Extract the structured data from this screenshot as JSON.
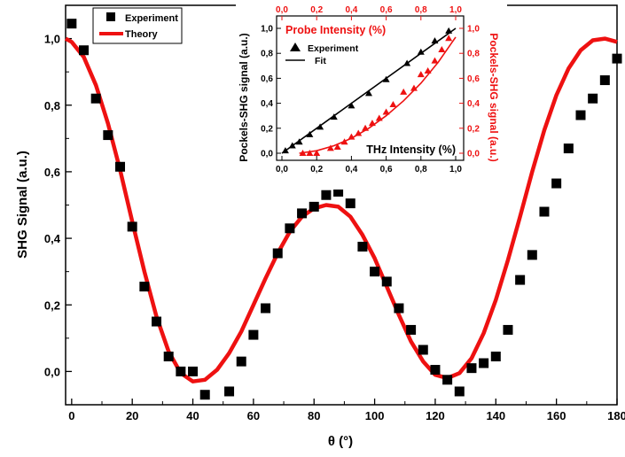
{
  "chart_data": [
    {
      "type": "scatter",
      "xlabel": "θ (°)",
      "ylabel": "SHG Signal (a.u.)",
      "xlim": [
        -2,
        180
      ],
      "ylim": [
        -0.1,
        1.1
      ],
      "x_ticks": [
        "0",
        "20",
        "40",
        "60",
        "80",
        "100",
        "120",
        "140",
        "160",
        "180"
      ],
      "y_ticks": [
        "0,0",
        "0,2",
        "0,4",
        "0,6",
        "0,8",
        "1,0"
      ],
      "legend": {
        "position": "top-left",
        "entries": [
          "Experiment",
          "Theory"
        ]
      },
      "series": [
        {
          "name": "Experiment",
          "style": "square-markers",
          "color": "#000000",
          "x": [
            0,
            4,
            8,
            12,
            16,
            20,
            24,
            28,
            32,
            36,
            40,
            44,
            52,
            56,
            60,
            64,
            68,
            72,
            76,
            80,
            84,
            88,
            92,
            96,
            100,
            104,
            108,
            112,
            116,
            120,
            124,
            128,
            132,
            136,
            140,
            144,
            148,
            152,
            156,
            160,
            164,
            168,
            172,
            176,
            180
          ],
          "y": [
            1.045,
            0.965,
            0.82,
            0.71,
            0.615,
            0.435,
            0.255,
            0.15,
            0.045,
            0.0,
            0.0,
            -0.07,
            -0.06,
            0.03,
            0.11,
            0.19,
            0.355,
            0.43,
            0.475,
            0.495,
            0.53,
            0.54,
            0.505,
            0.375,
            0.3,
            0.27,
            0.19,
            0.125,
            0.065,
            0.005,
            -0.025,
            -0.06,
            0.01,
            0.025,
            0.045,
            0.125,
            0.275,
            0.35,
            0.48,
            0.565,
            0.67,
            0.77,
            0.82,
            0.875,
            0.94
          ]
        },
        {
          "name": "Theory",
          "style": "line",
          "color": "#ee1111",
          "x": [
            -2,
            0,
            4,
            8,
            12,
            16,
            20,
            24,
            28,
            32,
            36,
            40,
            44,
            48,
            52,
            56,
            60,
            64,
            68,
            72,
            76,
            80,
            84,
            88,
            92,
            96,
            100,
            104,
            108,
            112,
            116,
            120,
            124,
            128,
            132,
            136,
            140,
            144,
            148,
            152,
            156,
            160,
            164,
            168,
            172,
            176,
            180
          ],
          "y": [
            1.0,
            0.99,
            0.945,
            0.86,
            0.745,
            0.605,
            0.45,
            0.3,
            0.165,
            0.06,
            -0.005,
            -0.03,
            -0.025,
            0.005,
            0.055,
            0.12,
            0.2,
            0.28,
            0.355,
            0.42,
            0.465,
            0.49,
            0.5,
            0.495,
            0.465,
            0.41,
            0.34,
            0.255,
            0.17,
            0.09,
            0.03,
            -0.01,
            -0.02,
            -0.005,
            0.04,
            0.115,
            0.215,
            0.335,
            0.465,
            0.6,
            0.725,
            0.83,
            0.91,
            0.965,
            0.995,
            1.0,
            0.99
          ]
        }
      ]
    },
    {
      "type": "scatter",
      "inset": true,
      "xlabel": "THz Intensity (%)",
      "x2label": "Probe Intensity (%)",
      "ylabel": "Pockels-SHG signal (a.u.)",
      "y2label": "Pockels-SHG signal (a.u.)",
      "xlim": [
        0,
        1
      ],
      "ylim": [
        0,
        1
      ],
      "x_ticks": [
        "0,0",
        "0,2",
        "0,4",
        "0,6",
        "0,8",
        "1,0"
      ],
      "y_ticks": [
        "0,0",
        "0,2",
        "0,4",
        "0,6",
        "0,8",
        "1,0"
      ],
      "legend": {
        "position": "top-left",
        "entries": [
          "Experiment",
          "Fit"
        ]
      },
      "series": [
        {
          "name": "Experiment",
          "style": "triangle-markers",
          "color": "#000000",
          "axis": "THz Intensity",
          "x": [
            0.02,
            0.06,
            0.1,
            0.16,
            0.22,
            0.3,
            0.4,
            0.5,
            0.6,
            0.72,
            0.8,
            0.88,
            0.96
          ],
          "y": [
            0.02,
            0.06,
            0.09,
            0.15,
            0.21,
            0.29,
            0.38,
            0.48,
            0.59,
            0.72,
            0.81,
            0.9,
            0.98
          ]
        },
        {
          "name": "Fit",
          "style": "line",
          "color": "#000000",
          "axis": "THz Intensity",
          "x": [
            0,
            1
          ],
          "y": [
            0,
            1
          ]
        },
        {
          "style": "triangle-markers",
          "color": "#ee1111",
          "axis": "Probe Intensity",
          "x": [
            0.12,
            0.16,
            0.2,
            0.28,
            0.32,
            0.36,
            0.4,
            0.44,
            0.48,
            0.52,
            0.56,
            0.6,
            0.64,
            0.7,
            0.76,
            0.8,
            0.84,
            0.88,
            0.92,
            0.96
          ],
          "y": [
            0.0,
            0.0,
            0.0,
            0.04,
            0.05,
            0.09,
            0.13,
            0.16,
            0.2,
            0.24,
            0.28,
            0.33,
            0.39,
            0.49,
            0.52,
            0.63,
            0.66,
            0.74,
            0.83,
            0.92
          ]
        },
        {
          "style": "line",
          "color": "#ee1111",
          "axis": "Probe Intensity",
          "x": [
            0.1,
            0.2,
            0.3,
            0.4,
            0.5,
            0.6,
            0.7,
            0.8,
            0.9,
            1.0
          ],
          "y": [
            0.0,
            0.02,
            0.06,
            0.12,
            0.2,
            0.3,
            0.42,
            0.56,
            0.73,
            0.93
          ]
        }
      ]
    }
  ]
}
